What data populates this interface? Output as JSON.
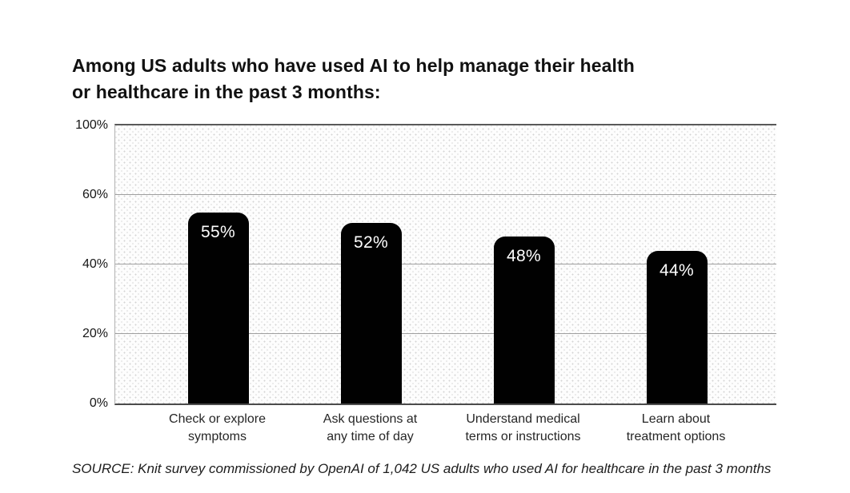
{
  "title": "Among US adults who have used AI to help manage their health\nor healthcare in the past 3 months:",
  "source_note": "SOURCE: Knit survey commissioned by OpenAI of 1,042 US adults who used AI for healthcare in the past 3 months",
  "colors": {
    "background": "#ffffff",
    "bar": "#010101",
    "bar_value_text": "#ffffff",
    "gridline": "#9e9e9e",
    "axis_line": "#4c4c4c",
    "title_text": "#111111",
    "tick_text": "#161616",
    "plot_dot_pattern": "#d4d4d4"
  },
  "chart_data": {
    "type": "bar",
    "title": "Among US adults who have used AI to help manage their health or healthcare in the past 3 months:",
    "categories": [
      "Check or explore\nsymptoms",
      "Ask questions at\nany time of day",
      "Understand medical\nterms or instructions",
      "Learn about\ntreatment options"
    ],
    "values": [
      55,
      52,
      48,
      44
    ],
    "value_labels": [
      "55%",
      "52%",
      "48%",
      "44%"
    ],
    "xlabel": "",
    "ylabel": "",
    "ylim": [
      0,
      100
    ],
    "yticks": [
      {
        "value": 0,
        "label": "0%"
      },
      {
        "value": 20,
        "label": "20%"
      },
      {
        "value": 40,
        "label": "40%"
      },
      {
        "value": 60,
        "label": "60%"
      },
      {
        "value": 100,
        "label": "100%"
      }
    ],
    "grid": "horizontal gridlines at 20%, 40%, 60%",
    "legend": "none",
    "bar_color": "#010101",
    "value_label_position": "inside-top, white text",
    "axis_note": "Top segment compressed: the 60%-to-100% span equals one 20% step, so plot height corresponds to a linear 0-80 scale with the top edge labeled 100%"
  }
}
